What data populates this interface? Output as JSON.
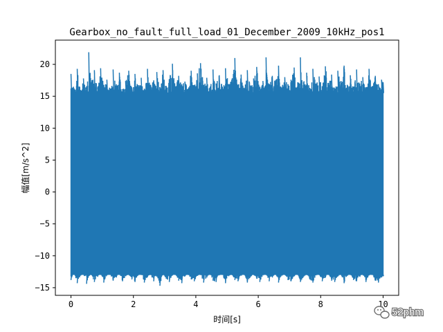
{
  "chart_data": {
    "type": "line",
    "title": "Gearbox_no_fault_full_load_01_December_2009_10kHz_pos1",
    "xlabel": "时间[s]",
    "ylabel": "幅值[m/s^2]",
    "xlim": [
      -0.5,
      10.5
    ],
    "ylim": [
      -16.2,
      23.8
    ],
    "xticks": [
      0,
      2,
      4,
      6,
      8,
      10
    ],
    "xtick_labels": [
      "0",
      "2",
      "4",
      "6",
      "8",
      "10"
    ],
    "yticks": [
      -15,
      -10,
      -5,
      0,
      5,
      10,
      15,
      20
    ],
    "ytick_labels": [
      "−15",
      "−10",
      "−5",
      "0",
      "5",
      "10",
      "15",
      "20"
    ],
    "grid": false,
    "series": [
      {
        "color": "#1f77b4",
        "sampling_rate_hz": 10000,
        "x_start": 0,
        "x_end": 10,
        "bulk_range": [
          -13,
          15.5
        ],
        "peak_max": 21.9,
        "peak_max_at": 0.57,
        "peak_min": -14.7,
        "envelope": {
          "x": [
            0,
            0.1,
            0.2,
            0.3,
            0.4,
            0.5,
            0.57,
            0.65,
            0.75,
            0.85,
            0.95,
            1.05,
            1.15,
            1.25,
            1.35,
            1.45,
            1.55,
            1.65,
            1.75,
            1.85,
            1.95,
            2.05,
            2.15,
            2.25,
            2.35,
            2.45,
            2.55,
            2.65,
            2.75,
            2.85,
            2.95,
            3.05,
            3.15,
            3.25,
            3.35,
            3.45,
            3.55,
            3.65,
            3.75,
            3.85,
            3.95,
            4.05,
            4.15,
            4.25,
            4.35,
            4.45,
            4.55,
            4.65,
            4.75,
            4.85,
            4.95,
            5.05,
            5.15,
            5.25,
            5.35,
            5.45,
            5.55,
            5.65,
            5.75,
            5.85,
            5.95,
            6.05,
            6.15,
            6.25,
            6.35,
            6.45,
            6.55,
            6.65,
            6.75,
            6.85,
            6.95,
            7.05,
            7.15,
            7.25,
            7.35,
            7.45,
            7.55,
            7.65,
            7.75,
            7.85,
            7.95,
            8.05,
            8.15,
            8.25,
            8.35,
            8.45,
            8.55,
            8.65,
            8.75,
            8.85,
            8.95,
            9.05,
            9.15,
            9.25,
            9.35,
            9.45,
            9.55,
            9.65,
            9.75,
            9.85,
            9.95,
            10.0
          ],
          "upper": [
            18.5,
            16.2,
            19.3,
            16.0,
            17.8,
            16.6,
            21.9,
            17.2,
            19.1,
            16.4,
            19.4,
            16.8,
            17.6,
            16.2,
            19.2,
            16.9,
            18.7,
            16.1,
            17.4,
            19.0,
            16.3,
            18.5,
            16.7,
            17.9,
            16.2,
            19.3,
            16.8,
            17.5,
            18.8,
            16.4,
            19.1,
            16.6,
            17.7,
            20.1,
            16.5,
            18.2,
            16.9,
            17.3,
            16.2,
            19.0,
            16.7,
            18.6,
            20.2,
            16.8,
            17.9,
            16.3,
            19.2,
            17.0,
            18.3,
            16.5,
            19.4,
            16.9,
            17.6,
            21.0,
            16.8,
            18.4,
            16.2,
            19.1,
            16.7,
            17.8,
            19.6,
            16.5,
            17.4,
            21.1,
            16.9,
            18.2,
            17.3,
            19.8,
            16.4,
            18.0,
            16.9,
            17.6,
            19.5,
            16.5,
            21.1,
            17.2,
            18.7,
            16.3,
            19.3,
            17.0,
            18.1,
            16.6,
            19.7,
            17.1,
            18.4,
            16.2,
            19.0,
            17.4,
            19.8,
            16.8,
            18.3,
            16.5,
            19.2,
            17.0,
            18.0,
            16.4,
            19.3,
            16.6,
            18.2,
            16.9,
            17.6,
            17.2
          ],
          "lower": [
            -13.8,
            -12.6,
            -14.3,
            -13.1,
            -12.8,
            -14.4,
            -13.2,
            -12.9,
            -14.1,
            -13.3,
            -12.7,
            -14.2,
            -13.0,
            -12.8,
            -13.9,
            -13.4,
            -12.6,
            -14.0,
            -13.2,
            -12.9,
            -13.7,
            -14.1,
            -13.0,
            -12.7,
            -14.2,
            -13.3,
            -12.9,
            -14.0,
            -13.1,
            -14.7,
            -12.8,
            -13.6,
            -14.1,
            -13.0,
            -12.9,
            -13.9,
            -14.3,
            -13.2,
            -12.8,
            -13.7,
            -14.0,
            -13.1,
            -12.9,
            -14.2,
            -13.4,
            -12.7,
            -13.9,
            -14.1,
            -13.0,
            -12.8,
            -14.3,
            -13.2,
            -12.9,
            -13.8,
            -14.0,
            -13.1,
            -12.7,
            -14.2,
            -13.3,
            -12.9,
            -13.6,
            -14.1,
            -13.0,
            -12.8,
            -14.0,
            -13.4,
            -12.7,
            -14.2,
            -13.1,
            -12.9,
            -13.8,
            -14.0,
            -13.2,
            -12.6,
            -14.1,
            -13.3,
            -12.9,
            -13.7,
            -14.2,
            -13.0,
            -12.8,
            -14.0,
            -13.4,
            -12.7,
            -13.9,
            -14.1,
            -13.2,
            -12.9,
            -14.3,
            -13.1,
            -12.8,
            -13.8,
            -14.0,
            -13.3,
            -12.9,
            -14.1,
            -13.0,
            -12.8,
            -13.9,
            -14.2,
            -13.4,
            -13.2
          ]
        }
      }
    ]
  },
  "watermark": {
    "text": "52phm",
    "icon": "wechat-icon"
  }
}
